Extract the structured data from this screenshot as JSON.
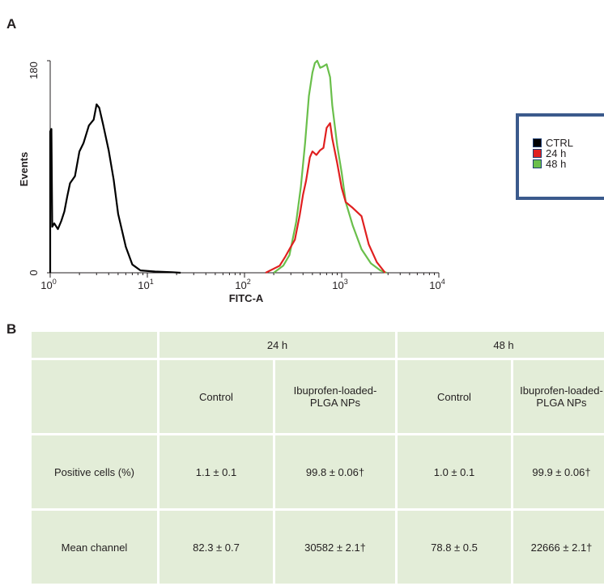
{
  "panels": {
    "a": "A",
    "b": "B"
  },
  "chart_data": {
    "type": "line",
    "xlabel": "FITC-A",
    "ylabel": "Events",
    "xscale": "log",
    "xlim": [
      1,
      10000
    ],
    "ylim": [
      0,
      180
    ],
    "x_ticks": [
      {
        "value": 1,
        "base": "10",
        "exp": "0"
      },
      {
        "value": 10,
        "base": "10",
        "exp": "1"
      },
      {
        "value": 100,
        "base": "10",
        "exp": "2"
      },
      {
        "value": 1000,
        "base": "10",
        "exp": "3"
      },
      {
        "value": 10000,
        "base": "10",
        "exp": "4"
      }
    ],
    "y_ticks": [
      "0",
      "180"
    ],
    "legend_position": "right",
    "series": [
      {
        "name": "CTRL",
        "color": "#000000",
        "points": [
          [
            1.0,
            0
          ],
          [
            1.0,
            120
          ],
          [
            1.03,
            122
          ],
          [
            1.05,
            39
          ],
          [
            1.1,
            42
          ],
          [
            1.2,
            37
          ],
          [
            1.3,
            44
          ],
          [
            1.4,
            52
          ],
          [
            1.5,
            65
          ],
          [
            1.6,
            76
          ],
          [
            1.8,
            82
          ],
          [
            2.0,
            103
          ],
          [
            2.2,
            110
          ],
          [
            2.5,
            125
          ],
          [
            2.8,
            130
          ],
          [
            3.0,
            143
          ],
          [
            3.2,
            140
          ],
          [
            3.5,
            126
          ],
          [
            4.0,
            104
          ],
          [
            4.5,
            79
          ],
          [
            5.0,
            50
          ],
          [
            6.0,
            22
          ],
          [
            7.0,
            7
          ],
          [
            8.5,
            2
          ],
          [
            12,
            1
          ],
          [
            18,
            0.5
          ],
          [
            22,
            0
          ]
        ]
      },
      {
        "name": "24 h",
        "color": "#e02020",
        "points": [
          [
            165,
            0
          ],
          [
            230,
            6
          ],
          [
            260,
            13
          ],
          [
            290,
            20
          ],
          [
            330,
            28
          ],
          [
            370,
            49
          ],
          [
            400,
            66
          ],
          [
            430,
            78
          ],
          [
            470,
            98
          ],
          [
            500,
            103
          ],
          [
            550,
            100
          ],
          [
            600,
            104
          ],
          [
            650,
            106
          ],
          [
            700,
            123
          ],
          [
            760,
            127
          ],
          [
            800,
            114
          ],
          [
            900,
            93
          ],
          [
            1000,
            72
          ],
          [
            1100,
            60
          ],
          [
            1300,
            55
          ],
          [
            1600,
            48
          ],
          [
            1900,
            24
          ],
          [
            2300,
            9
          ],
          [
            2800,
            0
          ]
        ]
      },
      {
        "name": "48 h",
        "color": "#6abf4b",
        "points": [
          [
            200,
            0
          ],
          [
            250,
            6
          ],
          [
            290,
            15
          ],
          [
            340,
            43
          ],
          [
            380,
            73
          ],
          [
            420,
            110
          ],
          [
            460,
            150
          ],
          [
            500,
            170
          ],
          [
            530,
            178
          ],
          [
            560,
            180
          ],
          [
            600,
            174
          ],
          [
            640,
            175
          ],
          [
            700,
            177
          ],
          [
            760,
            166
          ],
          [
            800,
            142
          ],
          [
            900,
            108
          ],
          [
            1000,
            85
          ],
          [
            1100,
            60
          ],
          [
            1300,
            40
          ],
          [
            1600,
            20
          ],
          [
            2000,
            8
          ],
          [
            2500,
            2
          ],
          [
            2900,
            0
          ]
        ]
      }
    ]
  },
  "table": {
    "headers": {
      "h24": "24 h",
      "h48": "48 h"
    },
    "subheaders": [
      "Control",
      "Ibuprofen-loaded-\nPLGA NPs",
      "Control",
      "Ibuprofen-loaded-\nPLGA NPs"
    ],
    "rows": [
      {
        "label": "Positive cells (%)",
        "cells": [
          "1.1 ± 0.1",
          "99.8 ± 0.06†",
          "1.0 ± 0.1",
          "99.9 ± 0.06†"
        ]
      },
      {
        "label": "Mean channel",
        "cells": [
          "82.3 ± 0.7",
          "30582 ± 2.1†",
          "78.8 ± 0.5",
          "22666 ± 2.1†"
        ]
      }
    ]
  }
}
